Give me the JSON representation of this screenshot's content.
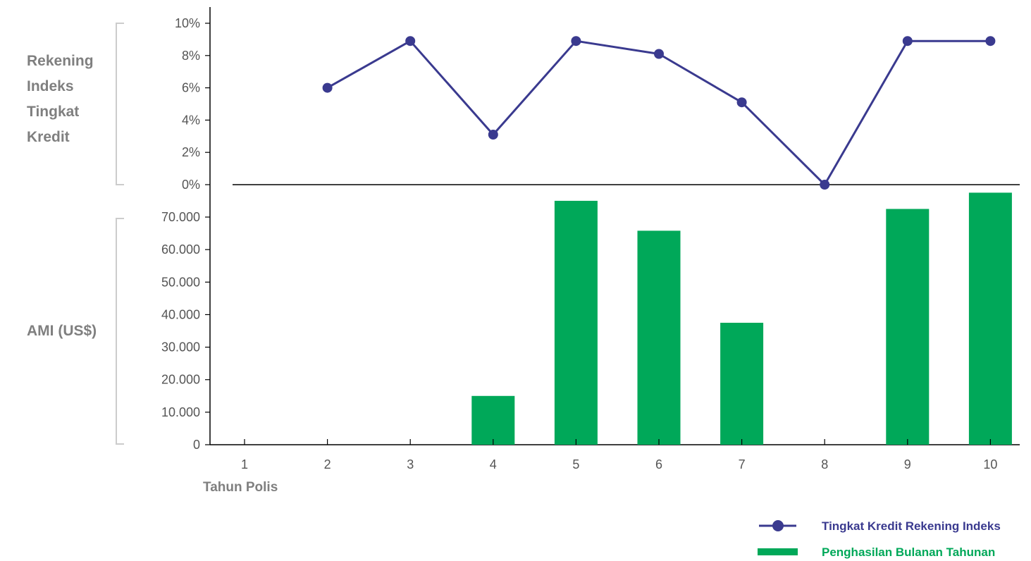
{
  "chart_data": {
    "type": "bar+line",
    "x_axis": {
      "label": "Tahun Polis",
      "categories": [
        "1",
        "2",
        "3",
        "4",
        "5",
        "6",
        "7",
        "8",
        "9",
        "10"
      ]
    },
    "top_panel": {
      "axis_label_lines": [
        "Rekening",
        "Indeks",
        "Tingkat",
        "Kredit"
      ],
      "ticks": [
        "0%",
        "2%",
        "4%",
        "6%",
        "8%",
        "10%"
      ],
      "ylim": [
        0,
        10
      ],
      "type": "line",
      "series": {
        "name": "Tingkat Kredit Rekening Indeks",
        "color": "#3a3a8f",
        "values": [
          null,
          6,
          8.9,
          3.1,
          8.9,
          8.1,
          5.1,
          0,
          8.9,
          8.9
        ]
      }
    },
    "bottom_panel": {
      "axis_label": "AMI (US$)",
      "ticks": [
        "0",
        "10.000",
        "20.000",
        "30.000",
        "40.000",
        "50.000",
        "60.000",
        "70.000"
      ],
      "ylim": [
        0,
        70000
      ],
      "type": "bar",
      "series": {
        "name": "Penghasilan Bulanan Tahunan",
        "color": "#00a859",
        "values": [
          0,
          0,
          0,
          15000,
          75000,
          65800,
          37500,
          0,
          72500,
          77500
        ]
      }
    },
    "legend": {
      "placement": "bottom-right",
      "items": [
        {
          "label": "Tingkat Kredit Rekening Indeks",
          "kind": "line-marker",
          "color": "#3a3a8f"
        },
        {
          "label": "Penghasilan Bulanan Tahunan",
          "kind": "bar",
          "color": "#00a859"
        }
      ]
    },
    "grid": false
  }
}
